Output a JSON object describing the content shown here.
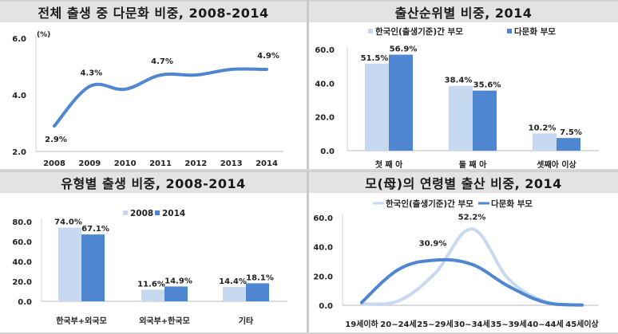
{
  "colors": {
    "light_series": "#c6d9f1",
    "dark_series": "#4f86d1",
    "axis": "#d0d0d0",
    "title_bg": "#e3e3e3"
  },
  "chart_data": [
    {
      "type": "line",
      "title": "전체 출생 중 다문화 비중, 2008-2014",
      "ylabel": "(%)",
      "xlabel": "",
      "categories": [
        "2008",
        "2009",
        "2010",
        "2011",
        "2012",
        "2013",
        "2014"
      ],
      "series": [
        {
          "name": "다문화 비중",
          "values": [
            2.9,
            4.3,
            4.2,
            4.7,
            4.7,
            4.9,
            4.9
          ]
        }
      ],
      "data_labels": [
        {
          "index": 0,
          "text": "2.9%"
        },
        {
          "index": 1,
          "text": "4.3%"
        },
        {
          "index": 3,
          "text": "4.7%"
        },
        {
          "index": 6,
          "text": "4.9%"
        }
      ],
      "ylim": [
        2.0,
        6.0
      ],
      "yticks": [
        "2.0",
        "4.0",
        "6.0"
      ],
      "smooth": true,
      "legend": "none"
    },
    {
      "type": "bar",
      "title": "출산순위별 비중, 2014",
      "categories": [
        "첫  째  아",
        "둘  째  아",
        "셋째아 이상"
      ],
      "series": [
        {
          "name": "한국인(출생기준)간 부모",
          "values": [
            51.5,
            38.4,
            10.2
          ],
          "labels": [
            "51.5%",
            "38.4%",
            "10.2%"
          ]
        },
        {
          "name": "다문화 부모",
          "values": [
            56.9,
            35.6,
            7.5
          ],
          "labels": [
            "56.9%",
            "35.6%",
            "7.5%"
          ]
        }
      ],
      "ylim": [
        0,
        60
      ],
      "yticks": [
        "0.0",
        "20.0",
        "40.0",
        "60.0"
      ],
      "legend": "top"
    },
    {
      "type": "bar",
      "title": "유형별 출생 비중, 2008-2014",
      "categories": [
        "한국부+외국모",
        "외국부+한국모",
        "기타"
      ],
      "series": [
        {
          "name": "2008",
          "values": [
            74.0,
            11.6,
            14.4
          ],
          "labels": [
            "74.0%",
            "11.6%",
            "14.4%"
          ]
        },
        {
          "name": "2014",
          "values": [
            67.1,
            14.9,
            18.1
          ],
          "labels": [
            "67.1%",
            "14.9%",
            "18.1%"
          ]
        }
      ],
      "ylim": [
        0,
        80
      ],
      "yticks": [
        "0.0",
        "20.0",
        "40.0",
        "60.0",
        "80.0"
      ],
      "legend": "top"
    },
    {
      "type": "line",
      "title": "모(母)의 연령별 출산 비중, 2014",
      "categories": [
        "19세이하",
        "20~24세",
        "25~29세",
        "30~34세",
        "35~39세",
        "40~44세",
        "45세이상"
      ],
      "series": [
        {
          "name": "한국인(출생기준)간 부모",
          "values": [
            1.0,
            3.0,
            22.0,
            52.2,
            18.0,
            2.5,
            0.1
          ]
        },
        {
          "name": "다문화 부모",
          "values": [
            2.0,
            24.5,
            30.9,
            28.0,
            13.0,
            2.0,
            0.2
          ]
        }
      ],
      "data_labels": [
        {
          "series": 0,
          "index": 3,
          "text": "52.2%"
        },
        {
          "series": 1,
          "index": 2,
          "text": "30.9%"
        }
      ],
      "ylim": [
        0,
        60
      ],
      "yticks": [
        "0.0",
        "20.0",
        "40.0",
        "60.0"
      ],
      "smooth": true,
      "legend": "top"
    }
  ]
}
